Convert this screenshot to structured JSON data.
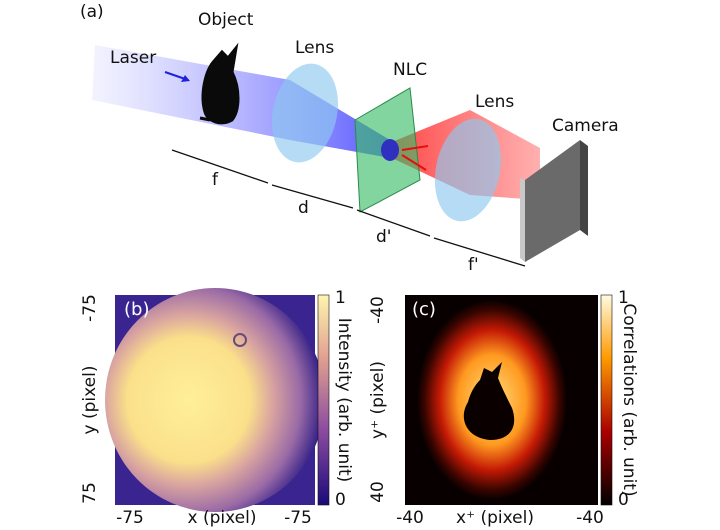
{
  "panel_a": {
    "label": "(a)",
    "object": "Object",
    "laser": "Laser",
    "lens1": "Lens",
    "nlc": "NLC",
    "lens2": "Lens",
    "camera": "Camera",
    "distances": [
      "f",
      "d",
      "d'",
      "f'"
    ]
  },
  "panel_b": {
    "label": "(b)",
    "y_ticks": [
      "-75",
      "75"
    ],
    "y_label": "y (pixel)",
    "x_ticks": [
      "-75",
      "-75"
    ],
    "x_label": "x (pixel)",
    "colorbar_ticks": [
      "1",
      "0"
    ],
    "colorbar_label": "Intensity (arb. unit)"
  },
  "panel_c": {
    "label": "(c)",
    "y_ticks": [
      "-40",
      "40"
    ],
    "y_label": "y⁺ (pixel)",
    "x_ticks": [
      "-40",
      "-40"
    ],
    "x_label": "x⁺ (pixel)",
    "colorbar_ticks": [
      "1",
      "0"
    ],
    "colorbar_label": "Correlations (arb. unit)"
  }
}
